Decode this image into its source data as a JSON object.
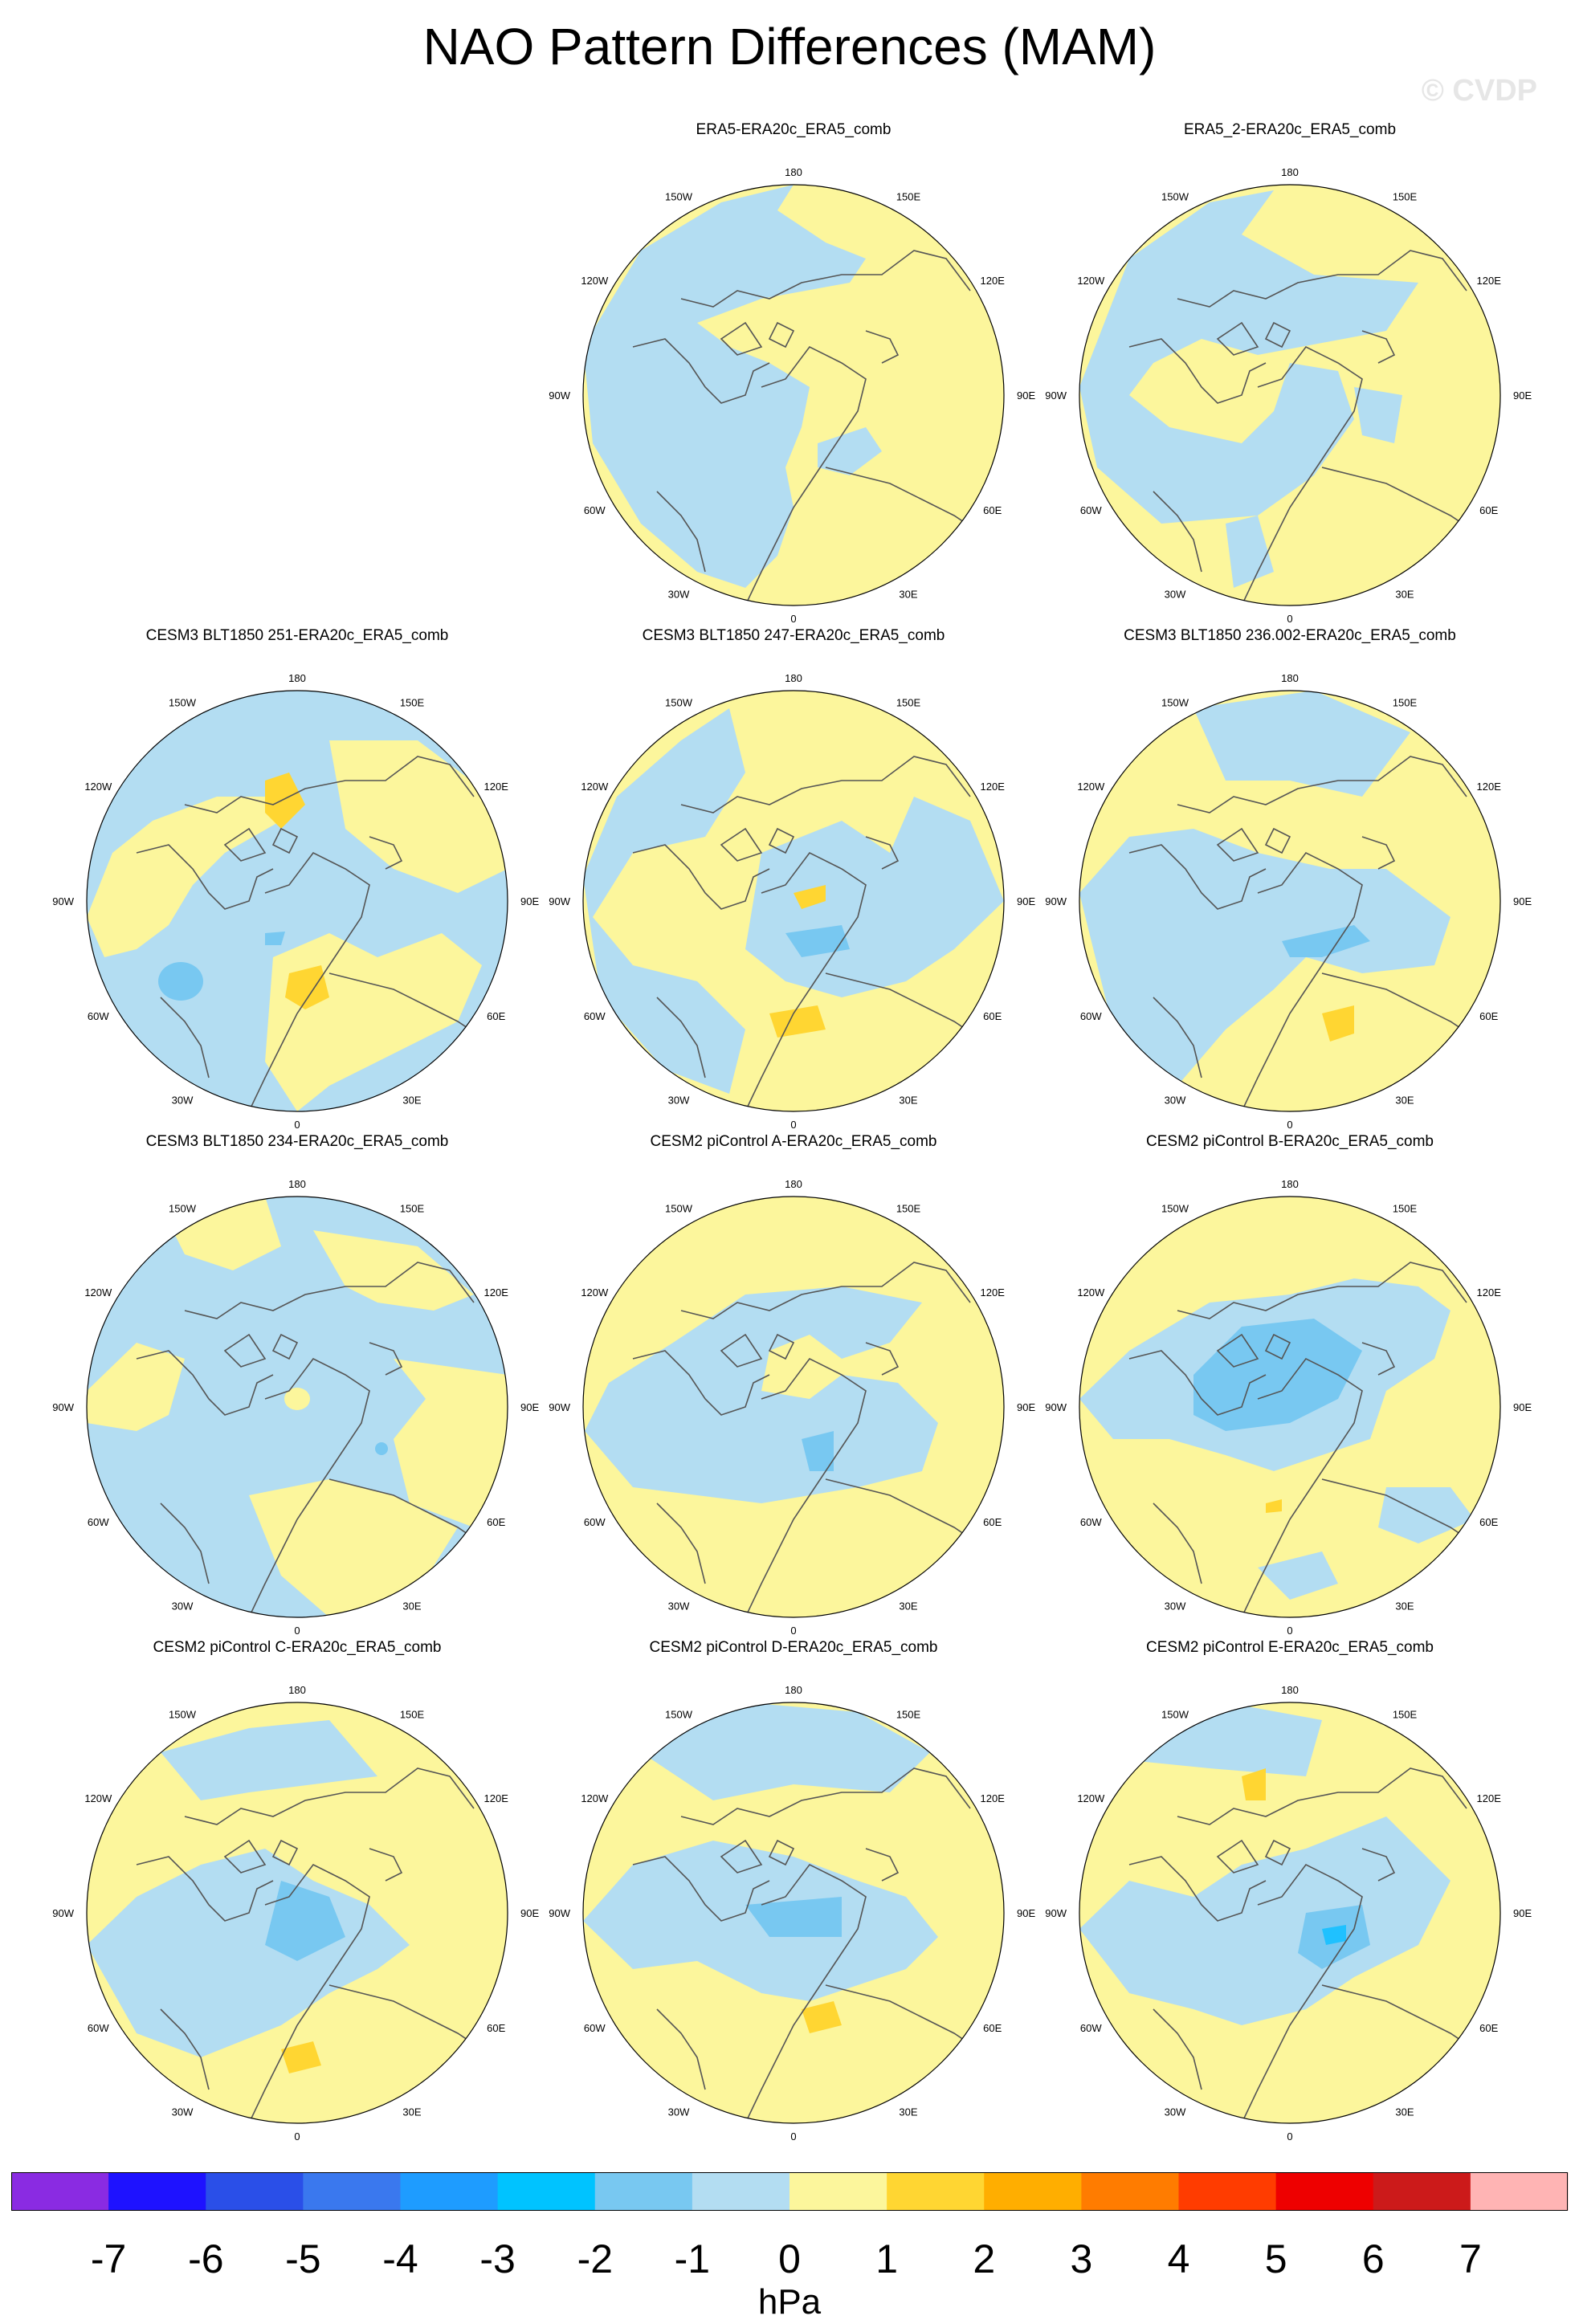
{
  "title": "NAO Pattern Differences (MAM)",
  "watermark": "© CVDP",
  "longitude_labels": [
    "180",
    "150E",
    "120E",
    "90E",
    "60E",
    "30E",
    "0",
    "30W",
    "60W",
    "90W",
    "120W",
    "150W"
  ],
  "colors": {
    "ocean_land_base_positive": "#fcf69c",
    "neg1": "#b3ddf2",
    "neg2": "#78c8f1",
    "neg3": "#1fc1ff",
    "pos1": "#ffd632",
    "coast": "#555555"
  },
  "chart_data": {
    "type": "heatmap",
    "projection": "north polar stereographic",
    "units": "hPa",
    "colorbar": {
      "levels": [
        "-7",
        "-6",
        "-5",
        "-4",
        "-3",
        "-2",
        "-1",
        "0",
        "1",
        "2",
        "3",
        "4",
        "5",
        "6",
        "7"
      ],
      "colors": [
        "#8a2be2",
        "#1e12ff",
        "#2a4fe8",
        "#3a78ee",
        "#1e9cff",
        "#00c3ff",
        "#78c8f1",
        "#b3ddf2",
        "#fcf69c",
        "#ffd632",
        "#ffae00",
        "#ff7c00",
        "#ff3c00",
        "#ee0000",
        "#cc1a1a",
        "#ffb4b4"
      ]
    },
    "panels": [
      {
        "title": "ERA5-ERA20c_ERA5_comb",
        "pattern": 0
      },
      {
        "title": "ERA5_2-ERA20c_ERA5_comb",
        "pattern": 1
      },
      {
        "title": "CESM3 BLT1850 251-ERA20c_ERA5_comb",
        "pattern": 2
      },
      {
        "title": "CESM3 BLT1850 247-ERA20c_ERA5_comb",
        "pattern": 3
      },
      {
        "title": "CESM3 BLT1850 236.002-ERA20c_ERA5_comb",
        "pattern": 4
      },
      {
        "title": "CESM3 BLT1850 234-ERA20c_ERA5_comb",
        "pattern": 5
      },
      {
        "title": "CESM2 piControl A-ERA20c_ERA5_comb",
        "pattern": 6
      },
      {
        "title": "CESM2 piControl B-ERA20c_ERA5_comb",
        "pattern": 7
      },
      {
        "title": "CESM2 piControl C-ERA20c_ERA5_comb",
        "pattern": 8
      },
      {
        "title": "CESM2 piControl D-ERA20c_ERA5_comb",
        "pattern": 9
      },
      {
        "title": "CESM2 piControl E-ERA20c_ERA5_comb",
        "pattern": 10
      }
    ]
  }
}
